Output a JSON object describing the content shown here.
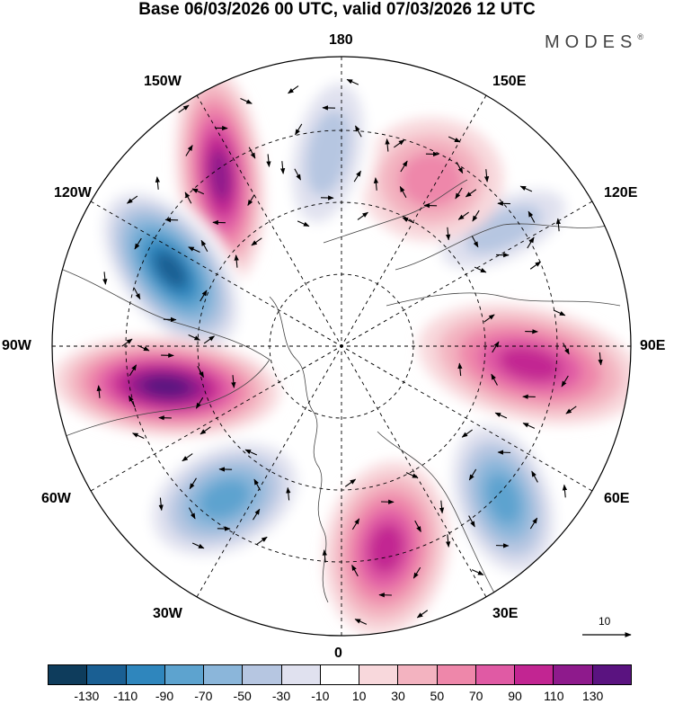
{
  "title": "Base 06/03/2026 00 UTC, valid 07/03/2026 12 UTC",
  "brand": {
    "name": "MODES",
    "mark": "®"
  },
  "longitude_labels": {
    "top": "180",
    "top_left": "150W",
    "top_right": "150E",
    "upper_left": "120W",
    "upper_right": "120E",
    "left": "90W",
    "right": "90E",
    "lower_left": "60W",
    "lower_right": "60E",
    "bottom_left": "30W",
    "bottom_right": "30E",
    "bottom": "0"
  },
  "vector_reference": {
    "value": "10"
  },
  "colorbar": {
    "colors": [
      "#0e3c5c",
      "#1a5f93",
      "#2f86bd",
      "#5da3cf",
      "#8bb6da",
      "#b6c6e1",
      "#e0e1ef",
      "#ffffff",
      "#f8d8dc",
      "#f3b3c0",
      "#ee87aa",
      "#e05aa4",
      "#c22592",
      "#8e1a8c",
      "#5a1380"
    ],
    "tick_labels": [
      "-130",
      "-110",
      "-90",
      "-70",
      "-50",
      "-30",
      "-10",
      "10",
      "30",
      "50",
      "70",
      "90",
      "110",
      "130"
    ]
  },
  "anomaly_centers": [
    {
      "name": "anomaly-north-pacific-positive",
      "level": 110
    },
    {
      "name": "anomaly-western-canada-negative",
      "level": -130
    },
    {
      "name": "anomaly-hudson-positive",
      "level": 130
    },
    {
      "name": "anomaly-north-atlantic-negative",
      "level": -90
    },
    {
      "name": "anomaly-europe-positive",
      "level": 90
    },
    {
      "name": "anomaly-west-siberia-negative",
      "level": -90
    },
    {
      "name": "anomaly-central-siberia-positive",
      "level": 90
    },
    {
      "name": "anomaly-east-siberia-negative",
      "level": -50
    },
    {
      "name": "anomaly-bering-positive",
      "level": 50
    },
    {
      "name": "anomaly-arctic-ocean-negative",
      "level": -50
    }
  ]
}
